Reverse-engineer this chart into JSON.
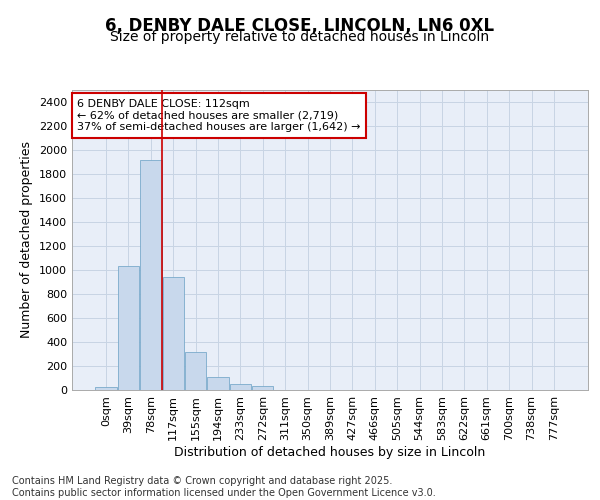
{
  "title_line1": "6, DENBY DALE CLOSE, LINCOLN, LN6 0XL",
  "title_line2": "Size of property relative to detached houses in Lincoln",
  "xlabel": "Distribution of detached houses by size in Lincoln",
  "ylabel": "Number of detached properties",
  "bar_color": "#c8d8ec",
  "bar_edge_color": "#7aaacb",
  "vline_color": "#cc0000",
  "annotation_text": "6 DENBY DALE CLOSE: 112sqm\n← 62% of detached houses are smaller (2,719)\n37% of semi-detached houses are larger (1,642) →",
  "annotation_box_color": "#ffffff",
  "annotation_box_edge": "#cc0000",
  "categories": [
    "0sqm",
    "39sqm",
    "78sqm",
    "117sqm",
    "155sqm",
    "194sqm",
    "233sqm",
    "272sqm",
    "311sqm",
    "350sqm",
    "389sqm",
    "427sqm",
    "466sqm",
    "505sqm",
    "544sqm",
    "583sqm",
    "622sqm",
    "661sqm",
    "700sqm",
    "738sqm",
    "777sqm"
  ],
  "values": [
    25,
    1030,
    1920,
    940,
    315,
    105,
    50,
    35,
    0,
    0,
    0,
    0,
    0,
    0,
    0,
    0,
    0,
    0,
    0,
    0,
    0
  ],
  "vline_pos": 2.5,
  "ylim": [
    0,
    2500
  ],
  "yticks": [
    0,
    200,
    400,
    600,
    800,
    1000,
    1200,
    1400,
    1600,
    1800,
    2000,
    2200,
    2400
  ],
  "grid_color": "#c8d4e4",
  "bg_color": "#e8eef8",
  "footer_text": "Contains HM Land Registry data © Crown copyright and database right 2025.\nContains public sector information licensed under the Open Government Licence v3.0.",
  "title_fontsize": 12,
  "subtitle_fontsize": 10,
  "axis_label_fontsize": 9,
  "tick_fontsize": 8,
  "footer_fontsize": 7
}
